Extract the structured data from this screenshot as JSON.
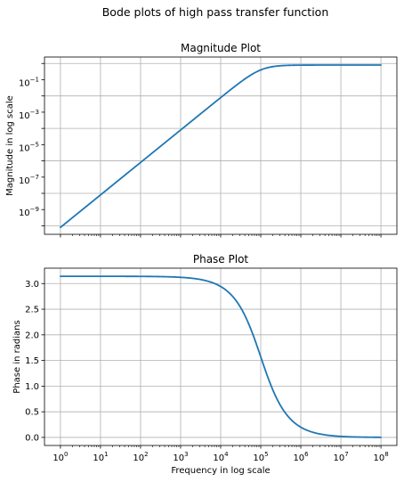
{
  "figure": {
    "suptitle": "Bode plots of high pass transfer function"
  },
  "chart_data": [
    {
      "type": "line",
      "title": "Magnitude Plot",
      "xlabel": "",
      "ylabel": "Magnitude in log scale",
      "xscale": "log",
      "yscale": "log",
      "xlim": [
        0.4,
        250000000
      ],
      "ylim": [
        3e-11,
        2.5
      ],
      "xticks": [
        1,
        10,
        100,
        1000,
        10000,
        100000,
        1000000,
        10000000,
        100000000
      ],
      "xtick_labels_visible": false,
      "yticks": [
        1e-10,
        1e-08,
        1e-06,
        0.0001,
        0.01,
        1
      ],
      "ytick_labels": [
        {
          "base": "10",
          "exp": "−9"
        },
        {
          "base": "10",
          "exp": "−7"
        },
        {
          "base": "10",
          "exp": "−5"
        },
        {
          "base": "10",
          "exp": "−3"
        },
        {
          "base": "10",
          "exp": "−1"
        }
      ],
      "ytick_label_values": [
        1e-09,
        1e-07,
        1e-05,
        0.001,
        0.1
      ],
      "grid": true,
      "series": [
        {
          "color": "#1f77b4",
          "function": "high_pass_magnitude",
          "cutoff_hz": 100000,
          "gain": 0.8,
          "x_range": [
            1,
            100000000
          ]
        }
      ]
    },
    {
      "type": "line",
      "title": "Phase Plot",
      "xlabel": "Frequency in log scale",
      "ylabel": "Phase in radians",
      "xscale": "log",
      "yscale": "linear",
      "xlim": [
        0.4,
        250000000
      ],
      "ylim": [
        -0.157,
        3.3
      ],
      "xticks": [
        1,
        10,
        100,
        1000,
        10000,
        100000,
        1000000,
        10000000,
        100000000
      ],
      "xtick_labels": [
        {
          "base": "10",
          "exp": "0"
        },
        {
          "base": "10",
          "exp": "1"
        },
        {
          "base": "10",
          "exp": "2"
        },
        {
          "base": "10",
          "exp": "3"
        },
        {
          "base": "10",
          "exp": "4"
        },
        {
          "base": "10",
          "exp": "5"
        },
        {
          "base": "10",
          "exp": "6"
        },
        {
          "base": "10",
          "exp": "7"
        },
        {
          "base": "10",
          "exp": "8"
        }
      ],
      "yticks": [
        0.0,
        0.5,
        1.0,
        1.5,
        2.0,
        2.5,
        3.0
      ],
      "ytick_labels": [
        "0.0",
        "0.5",
        "1.0",
        "1.5",
        "2.0",
        "2.5",
        "3.0"
      ],
      "grid": true,
      "series": [
        {
          "color": "#1f77b4",
          "function": "high_pass_phase",
          "cutoff_hz": 100000,
          "x_range": [
            1,
            100000000
          ]
        }
      ]
    }
  ]
}
